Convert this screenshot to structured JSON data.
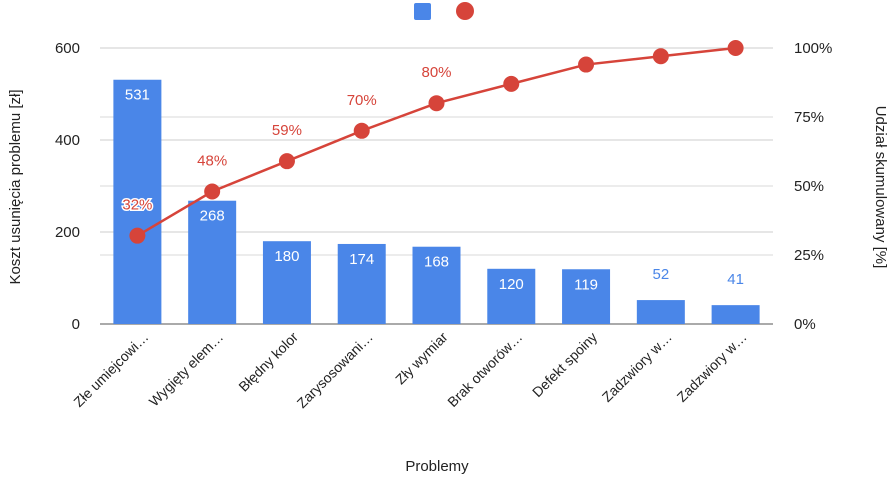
{
  "chart_data": {
    "type": "bar",
    "title": "",
    "xlabel": "Problemy",
    "ylabel": "Koszt usunięcia problemu [zł]",
    "y2label": "Udział skumulowany [%]",
    "ylim": [
      0,
      600
    ],
    "yticks": [
      "0",
      "200",
      "400",
      "600"
    ],
    "y2lim": [
      0,
      100
    ],
    "y2ticks": [
      "0%",
      "25%",
      "50%",
      "75%",
      "100%"
    ],
    "grid": true,
    "legend": "top",
    "categories": [
      "Złe umiejcowi…",
      "Wygięty elem…",
      "Błędny kolor",
      "Zarysosowani…",
      "Zły wymiar",
      "Brak otworów…",
      "Defekt spoiny",
      "Zadzwiory w…",
      "Zadzwiory w…"
    ],
    "series": [
      {
        "kind": "bar",
        "color": "#4a86e8",
        "values": [
          531,
          268,
          180,
          174,
          168,
          120,
          119,
          52,
          41
        ],
        "labels": [
          "531",
          "268",
          "180",
          "174",
          "168",
          "120",
          "119",
          "52",
          "41"
        ]
      },
      {
        "kind": "line",
        "axis": "right",
        "color": "#d6443a",
        "values": [
          32,
          48,
          59,
          70,
          80,
          87,
          94,
          97,
          100
        ],
        "labels": [
          "32%",
          "48%",
          "59%",
          "70%",
          "80%",
          "",
          "",
          "",
          ""
        ]
      }
    ]
  }
}
